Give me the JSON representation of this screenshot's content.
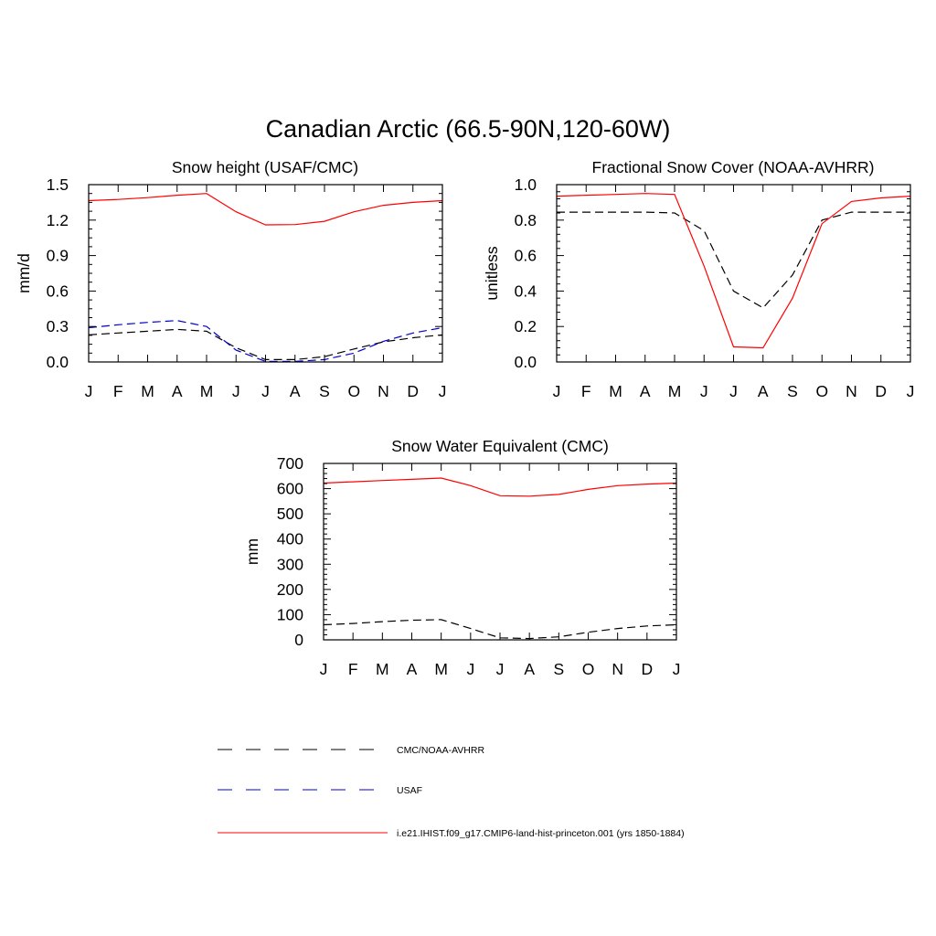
{
  "figure": {
    "title": "Canadian Arctic (66.5-90N,120-60W)"
  },
  "legend": {
    "placement": "bottom",
    "entries": [
      {
        "label": "CMC/NOAA-AVHRR",
        "color": "#000000",
        "dash": "dashed"
      },
      {
        "label": "USAF",
        "color": "#0000cc",
        "dash": "dashed"
      },
      {
        "label": "i.e21.IHIST.f09_g17.CMIP6-land-hist-princeton.001 (yrs 1850-1884)",
        "color": "#ff0000",
        "dash": "solid"
      }
    ]
  },
  "chart_data": [
    {
      "type": "line",
      "title": "Snow height (USAF/CMC)",
      "xlabel": "",
      "ylabel": "mm/d",
      "categories": [
        "J",
        "F",
        "M",
        "A",
        "M",
        "J",
        "J",
        "A",
        "S",
        "O",
        "N",
        "D",
        "J"
      ],
      "ylim": [
        0,
        1.5
      ],
      "yticks": [
        "0.0",
        "0.3",
        "0.6",
        "0.9",
        "1.2",
        "1.5"
      ],
      "grid": false,
      "series": [
        {
          "name": "i.e21.IHIST.f09_g17.CMIP6-land-hist-princeton.001 (yrs 1850-1884)",
          "color": "#ff0000",
          "dash": "solid",
          "values": [
            1.365,
            1.375,
            1.39,
            1.41,
            1.425,
            1.27,
            1.16,
            1.162,
            1.19,
            1.27,
            1.325,
            1.35,
            1.365
          ]
        },
        {
          "name": "USAF",
          "color": "#0000cc",
          "dash": "dashed",
          "values": [
            0.29,
            0.315,
            0.335,
            0.35,
            0.3,
            0.1,
            0.005,
            0.005,
            0.02,
            0.075,
            0.175,
            0.245,
            0.29
          ]
        },
        {
          "name": "CMC/NOAA-AVHRR",
          "color": "#000000",
          "dash": "dashed",
          "values": [
            0.23,
            0.245,
            0.26,
            0.275,
            0.26,
            0.12,
            0.02,
            0.02,
            0.045,
            0.11,
            0.17,
            0.205,
            0.23
          ]
        }
      ]
    },
    {
      "type": "line",
      "title": "Fractional Snow Cover (NOAA-AVHRR)",
      "xlabel": "",
      "ylabel": "unitless",
      "categories": [
        "J",
        "F",
        "M",
        "A",
        "M",
        "J",
        "J",
        "A",
        "S",
        "O",
        "N",
        "D",
        "J"
      ],
      "ylim": [
        0,
        1.0
      ],
      "yticks": [
        "0.0",
        "0.2",
        "0.4",
        "0.6",
        "0.8",
        "1.0"
      ],
      "grid": false,
      "series": [
        {
          "name": "i.e21.IHIST.f09_g17.CMIP6-land-hist-princeton.001 (yrs 1850-1884)",
          "color": "#ff0000",
          "dash": "solid",
          "values": [
            0.935,
            0.94,
            0.945,
            0.95,
            0.945,
            0.54,
            0.085,
            0.08,
            0.36,
            0.78,
            0.905,
            0.925,
            0.935
          ]
        },
        {
          "name": "CMC/NOAA-AVHRR",
          "color": "#000000",
          "dash": "dashed",
          "values": [
            0.845,
            0.845,
            0.845,
            0.845,
            0.84,
            0.74,
            0.4,
            0.305,
            0.49,
            0.8,
            0.845,
            0.845,
            0.845
          ]
        }
      ]
    },
    {
      "type": "line",
      "title": "Snow Water Equivalent (CMC)",
      "xlabel": "",
      "ylabel": "mm",
      "categories": [
        "J",
        "F",
        "M",
        "A",
        "M",
        "J",
        "J",
        "A",
        "S",
        "O",
        "N",
        "D",
        "J"
      ],
      "ylim": [
        0,
        700
      ],
      "yticks": [
        "0",
        "100",
        "200",
        "300",
        "400",
        "500",
        "600",
        "700"
      ],
      "grid": false,
      "series": [
        {
          "name": "i.e21.IHIST.f09_g17.CMIP6-land-hist-princeton.001 (yrs 1850-1884)",
          "color": "#ff0000",
          "dash": "solid",
          "values": [
            622,
            627,
            632,
            637,
            642,
            612,
            572,
            570,
            577,
            597,
            612,
            618,
            622
          ]
        },
        {
          "name": "CMC/NOAA-AVHRR",
          "color": "#000000",
          "dash": "dashed",
          "values": [
            60,
            65,
            72,
            78,
            80,
            45,
            8,
            5,
            12,
            30,
            45,
            55,
            60
          ]
        }
      ]
    }
  ]
}
